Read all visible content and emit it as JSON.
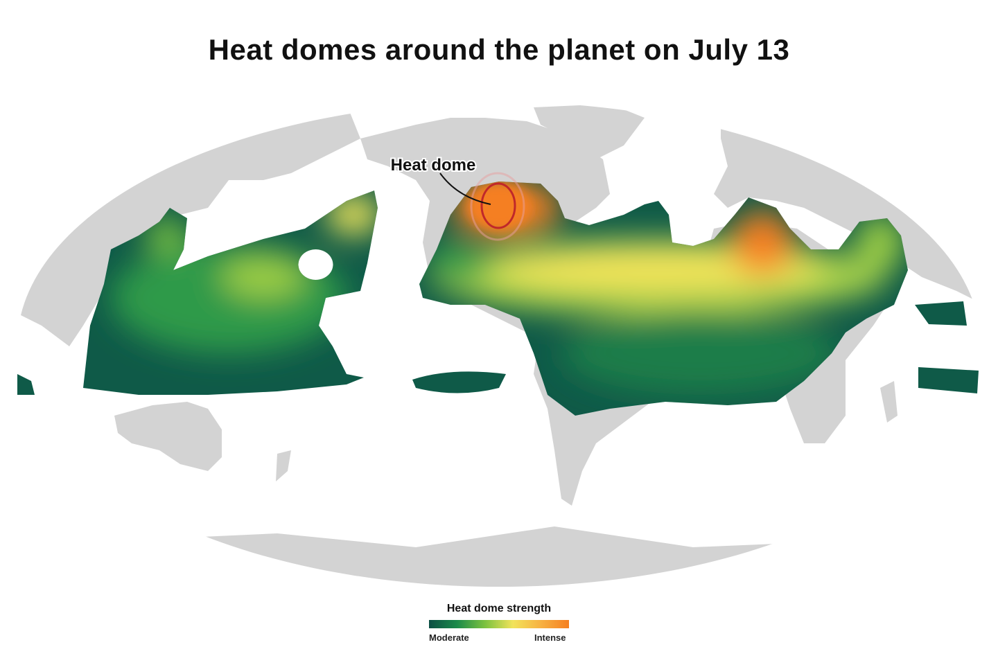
{
  "title": "Heat domes around the planet on July 13",
  "annotation": {
    "label": "Heat dome"
  },
  "legend": {
    "title": "Heat dome strength",
    "low_label": "Moderate",
    "high_label": "Intense"
  }
}
